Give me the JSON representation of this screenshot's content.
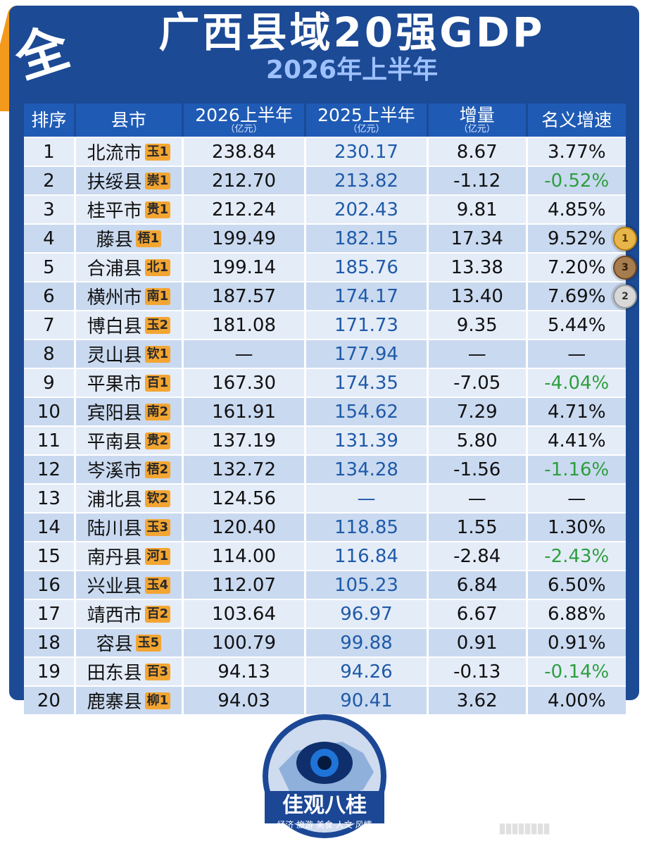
{
  "title": "广西县域20强GDP",
  "subtitle": "2026年上半年",
  "corner_badge": "全",
  "headers": [
    {
      "main": "排序",
      "unit": ""
    },
    {
      "main": "县市",
      "unit": ""
    },
    {
      "main": "2026上半年",
      "unit": "（亿元）"
    },
    {
      "main": "2025上半年",
      "unit": "（亿元）"
    },
    {
      "main": "增量",
      "unit": "（亿元）"
    },
    {
      "main": "名义增速",
      "unit": ""
    }
  ],
  "rows": [
    {
      "rank": "1",
      "county": "北流市",
      "tag": "玉1",
      "v2026": "238.84",
      "v2025": "230.17",
      "inc": "8.67",
      "rate": "3.77%",
      "neg": false,
      "medal": ""
    },
    {
      "rank": "2",
      "county": "扶绥县",
      "tag": "崇1",
      "v2026": "212.70",
      "v2025": "213.82",
      "inc": "-1.12",
      "rate": "-0.52%",
      "neg": true,
      "medal": ""
    },
    {
      "rank": "3",
      "county": "桂平市",
      "tag": "贵1",
      "v2026": "212.24",
      "v2025": "202.43",
      "inc": "9.81",
      "rate": "4.85%",
      "neg": false,
      "medal": ""
    },
    {
      "rank": "4",
      "county": "藤县",
      "tag": "梧1",
      "v2026": "199.49",
      "v2025": "182.15",
      "inc": "17.34",
      "rate": "9.52%",
      "neg": false,
      "medal": "1"
    },
    {
      "rank": "5",
      "county": "合浦县",
      "tag": "北1",
      "v2026": "199.14",
      "v2025": "185.76",
      "inc": "13.38",
      "rate": "7.20%",
      "neg": false,
      "medal": "3"
    },
    {
      "rank": "6",
      "county": "横州市",
      "tag": "南1",
      "v2026": "187.57",
      "v2025": "174.17",
      "inc": "13.40",
      "rate": "7.69%",
      "neg": false,
      "medal": "2"
    },
    {
      "rank": "7",
      "county": "博白县",
      "tag": "玉2",
      "v2026": "181.08",
      "v2025": "171.73",
      "inc": "9.35",
      "rate": "5.44%",
      "neg": false,
      "medal": ""
    },
    {
      "rank": "8",
      "county": "灵山县",
      "tag": "钦1",
      "v2026": "—",
      "v2025": "177.94",
      "inc": "—",
      "rate": "—",
      "neg": false,
      "medal": ""
    },
    {
      "rank": "9",
      "county": "平果市",
      "tag": "百1",
      "v2026": "167.30",
      "v2025": "174.35",
      "inc": "-7.05",
      "rate": "-4.04%",
      "neg": true,
      "medal": ""
    },
    {
      "rank": "10",
      "county": "宾阳县",
      "tag": "南2",
      "v2026": "161.91",
      "v2025": "154.62",
      "inc": "7.29",
      "rate": "4.71%",
      "neg": false,
      "medal": ""
    },
    {
      "rank": "11",
      "county": "平南县",
      "tag": "贵2",
      "v2026": "137.19",
      "v2025": "131.39",
      "inc": "5.80",
      "rate": "4.41%",
      "neg": false,
      "medal": ""
    },
    {
      "rank": "12",
      "county": "岑溪市",
      "tag": "梧2",
      "v2026": "132.72",
      "v2025": "134.28",
      "inc": "-1.56",
      "rate": "-1.16%",
      "neg": true,
      "medal": ""
    },
    {
      "rank": "13",
      "county": "浦北县",
      "tag": "钦2",
      "v2026": "124.56",
      "v2025": "—",
      "inc": "—",
      "rate": "—",
      "neg": false,
      "medal": ""
    },
    {
      "rank": "14",
      "county": "陆川县",
      "tag": "玉3",
      "v2026": "120.40",
      "v2025": "118.85",
      "inc": "1.55",
      "rate": "1.30%",
      "neg": false,
      "medal": ""
    },
    {
      "rank": "15",
      "county": "南丹县",
      "tag": "河1",
      "v2026": "114.00",
      "v2025": "116.84",
      "inc": "-2.84",
      "rate": "-2.43%",
      "neg": true,
      "medal": ""
    },
    {
      "rank": "16",
      "county": "兴业县",
      "tag": "玉4",
      "v2026": "112.07",
      "v2025": "105.23",
      "inc": "6.84",
      "rate": "6.50%",
      "neg": false,
      "medal": ""
    },
    {
      "rank": "17",
      "county": "靖西市",
      "tag": "百2",
      "v2026": "103.64",
      "v2025": "96.97",
      "inc": "6.67",
      "rate": "6.88%",
      "neg": false,
      "medal": ""
    },
    {
      "rank": "18",
      "county": "容县",
      "tag": "玉5",
      "v2026": "100.79",
      "v2025": "99.88",
      "inc": "0.91",
      "rate": "0.91%",
      "neg": false,
      "medal": ""
    },
    {
      "rank": "19",
      "county": "田东县",
      "tag": "百3",
      "v2026": "94.13",
      "v2025": "94.26",
      "inc": "-0.13",
      "rate": "-0.14%",
      "neg": true,
      "medal": ""
    },
    {
      "rank": "20",
      "county": "鹿寨县",
      "tag": "柳1",
      "v2026": "94.03",
      "v2025": "90.41",
      "inc": "3.62",
      "rate": "4.00%",
      "neg": false,
      "medal": ""
    }
  ],
  "logo": {
    "name": "佳观八桂",
    "slogan": "经济 旅游 美食 人文 风情"
  },
  "colors": {
    "header_blue": "#1c4a95",
    "accent_orange": "#f39a1c",
    "negative_green": "#2e9e3e",
    "value_2025_blue": "#1f5aa8"
  }
}
